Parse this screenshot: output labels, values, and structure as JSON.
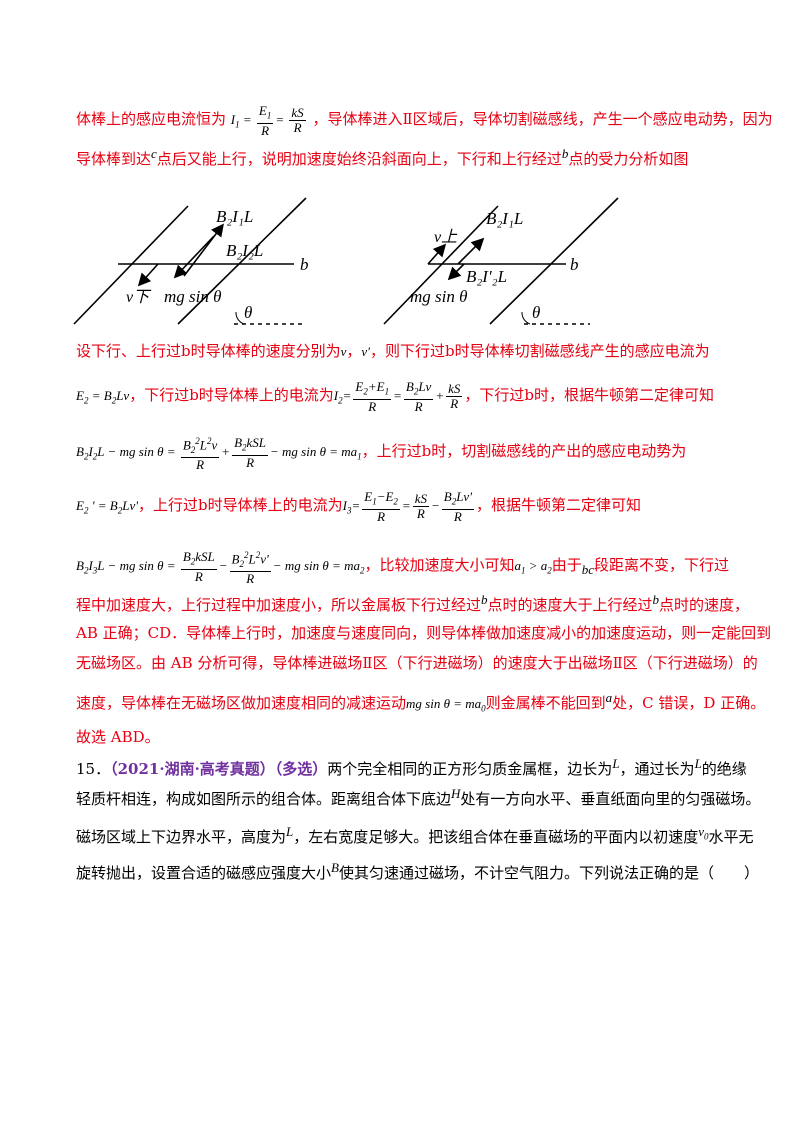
{
  "p1": {
    "t1": "体棒上的感应电流恒为",
    "t2": "，导体棒进入Ⅱ区域后，导体切割磁感线，产生一个感应电动势，因为",
    "t3": "导体棒到达",
    "t4": "点后又能上行，说明加速度始终沿斜面向上，下行和上行经过",
    "t5": "点的受力分析如图",
    "c": "c",
    "b": "b"
  },
  "fig": {
    "f_top": "B₂I₁L",
    "f_mid_left": "B₂I₂L",
    "v_down": "v下",
    "mg": "mg sin θ",
    "b": "b",
    "theta": "θ",
    "v_up": "v上",
    "f_mid_right": "B₂I′₂L"
  },
  "p2": {
    "t1": "设下行、上行过b时导体棒的速度分别为",
    "v": "v",
    "comma": "，",
    "vp": "v'",
    "t2": "，则下行过b时导体棒切割磁感线产生的感应电流为"
  },
  "p3": {
    "t1": "，下行过b时导体棒上的电流为",
    "t2": "，下行过b时，根据牛顿第二定律可知"
  },
  "p4": {
    "t1": "，上行过b时，切割磁感线的产出的感应电动势为"
  },
  "p5": {
    "t1": "，上行过b时导体棒上的电流为",
    "t2": "，根据牛顿第二定律可知"
  },
  "p6": {
    "t1": "，比较加速度大小可知",
    "t2": "由于",
    "t3": "段距离不变，下行过"
  },
  "p7": {
    "l1a": "程中加速度大，上行过程中加速度小，所以金属板下行过经过",
    "l1b": "点时的速度大于上行经过",
    "l1c": "点时的速度，",
    "l2": "AB 正确；CD．导体棒上行时，加速度与速度同向，则导体棒做加速度减小的加速度运动，则一定能回到",
    "l3": "无磁场区。由 AB 分析可得，导体棒进磁场Ⅱ区（下行进磁场）的速度大于出磁场Ⅱ区（下行进磁场）的",
    "l4a": "速度，导体棒在无磁场区做加速度相同的减速运动",
    "l4b": "则金属棒不能回到",
    "l4c": "处，C 错误，D 正确。",
    "l5": "故选 ABD。"
  },
  "q15": {
    "num": "15．",
    "tag": "（2021·湖南·高考真题）（多选）",
    "l1a": "两个完全相同的正方形匀质金属框，边长为",
    "l1b": "，通过长为",
    "l1c": "的绝缘",
    "l2a": "轻质杆相连，构成如图所示的组合体。距离组合体下底边",
    "l2b": "处有一方向水平、垂直纸面向里的匀强磁场。",
    "l3a": "磁场区域上下边界水平，高度为",
    "l3b": "，左右宽度足够大。把该组合体在垂直磁场的平面内以初速度",
    "l3c": "水平无",
    "l4a": "旋转抛出，设置合适的磁感应强度大小",
    "l4b": "使其匀速通过磁场，不计空气阻力。下列说法正确的是（　　）",
    "L": "L",
    "H": "H",
    "v0": "v",
    "B": "B"
  }
}
